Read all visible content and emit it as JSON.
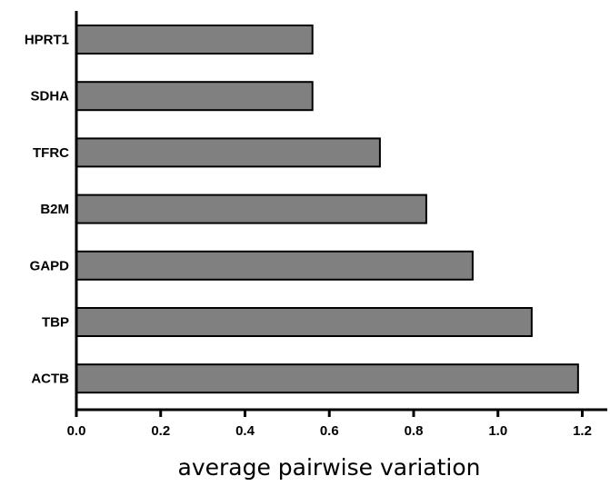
{
  "chart_data": {
    "type": "bar",
    "orientation": "horizontal",
    "categories": [
      "HPRT1",
      "SDHA",
      "TFRC",
      "B2M",
      "GAPD",
      "TBP",
      "ACTB"
    ],
    "values": [
      0.56,
      0.56,
      0.72,
      0.83,
      0.94,
      1.08,
      1.19
    ],
    "xlabel": "average pairwise variation",
    "ylabel": "",
    "xlim": [
      0,
      1.25
    ],
    "x_ticks": [
      "0.0",
      "0.2",
      "0.4",
      "0.6",
      "0.8",
      "1.0",
      "1.2"
    ],
    "bar_color": "#808080",
    "grid": false,
    "legend": "none"
  }
}
